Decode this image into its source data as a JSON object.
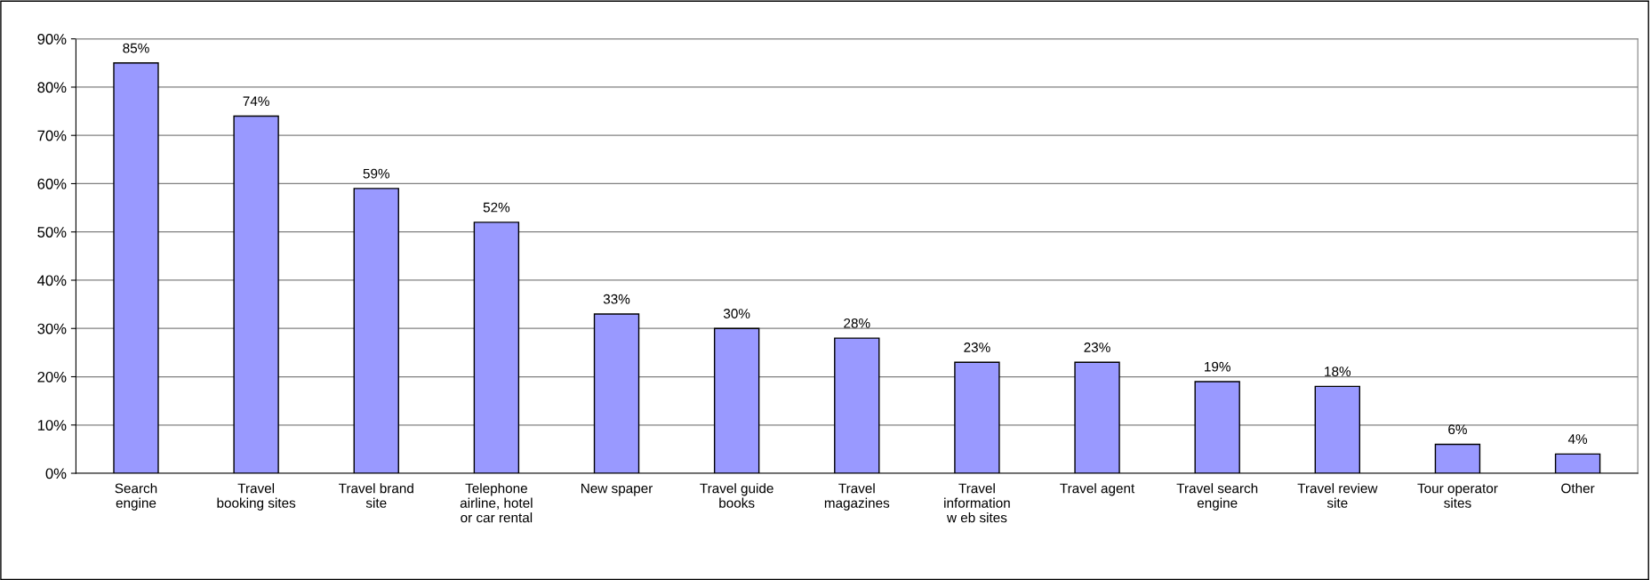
{
  "chart_data": {
    "type": "bar",
    "categories": [
      "Search\nengine",
      "Travel\nbooking sites",
      "Travel brand\nsite",
      "Telephone\nairline, hotel\nor car rental",
      "New spaper",
      "Travel guide\nbooks",
      "Travel\nmagazines",
      "Travel\ninformation\nw eb sites",
      "Travel agent",
      "Travel search\nengine",
      "Travel review\nsite",
      "Tour operator\nsites",
      "Other"
    ],
    "values": [
      85,
      74,
      59,
      52,
      33,
      30,
      28,
      23,
      23,
      19,
      18,
      6,
      4
    ],
    "color": "#9999ff",
    "value_labels": [
      "85%",
      "74%",
      "59%",
      "52%",
      "33%",
      "30%",
      "28%",
      "23%",
      "23%",
      "19%",
      "18%",
      "6%",
      "4%"
    ],
    "ylim": [
      0,
      90
    ],
    "yticks": [
      {
        "value": 0,
        "label": "0%"
      },
      {
        "value": 10,
        "label": "10%"
      },
      {
        "value": 20,
        "label": "20%"
      },
      {
        "value": 30,
        "label": "30%"
      },
      {
        "value": 40,
        "label": "40%"
      },
      {
        "value": 50,
        "label": "50%"
      },
      {
        "value": 60,
        "label": "60%"
      },
      {
        "value": 70,
        "label": "70%"
      },
      {
        "value": 80,
        "label": "80%"
      },
      {
        "value": 90,
        "label": "90%"
      }
    ],
    "grid": "y",
    "legend": false
  }
}
